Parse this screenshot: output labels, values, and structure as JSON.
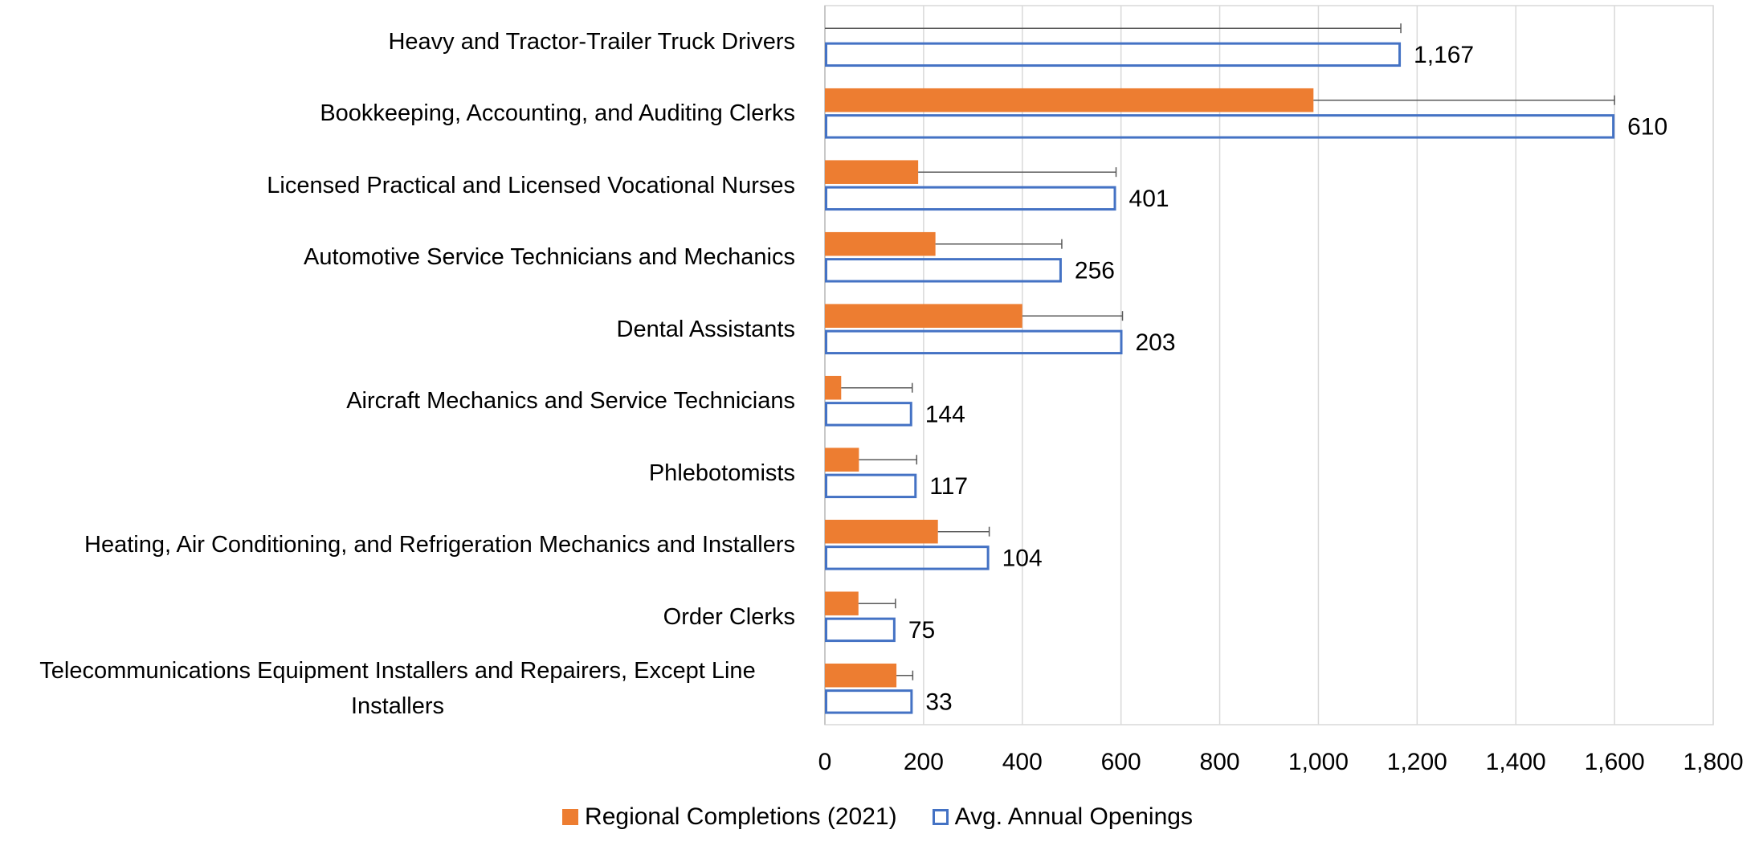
{
  "chart_data": {
    "type": "bar",
    "orientation": "horizontal",
    "categories": [
      "Heavy and Tractor-Trailer Truck Drivers",
      "Bookkeeping, Accounting, and Auditing Clerks",
      "Licensed Practical and Licensed Vocational Nurses",
      "Automotive Service Technicians and Mechanics",
      "Dental Assistants",
      "Aircraft Mechanics and Service Technicians",
      "Phlebotomists",
      "Heating, Air Conditioning, and Refrigeration Mechanics and Installers",
      "Order Clerks",
      "Telecommunications Equipment Installers and Repairers, Except Line Installers"
    ],
    "series": [
      {
        "name": "Regional Completions (2021)",
        "color": "#ed7d31",
        "fill": true,
        "values": [
          0,
          990,
          189,
          224,
          400,
          33,
          69,
          229,
          68,
          145
        ],
        "errors": [
          1167,
          610,
          401,
          256,
          203,
          144,
          117,
          104,
          75,
          33
        ],
        "error_labels": [
          "1,167",
          "610",
          "401",
          "256",
          "203",
          "144",
          "117",
          "104",
          "75",
          "33"
        ]
      },
      {
        "name": "Avg. Annual Openings",
        "color": "#4472c4",
        "fill": false,
        "values": [
          1167,
          1600,
          590,
          480,
          603,
          177,
          186,
          333,
          143,
          178
        ]
      }
    ],
    "xlim": [
      0,
      1800
    ],
    "xticks": [
      0,
      200,
      400,
      600,
      800,
      {
        "value": 1000,
        "label": "1,000"
      },
      {
        "value": 1200,
        "label": "1,200"
      },
      {
        "value": 1400,
        "label": "1,400"
      },
      {
        "value": 1600,
        "label": "1,600"
      },
      {
        "value": 1800,
        "label": "1,800"
      }
    ],
    "grid": true,
    "legend": "bottom"
  }
}
